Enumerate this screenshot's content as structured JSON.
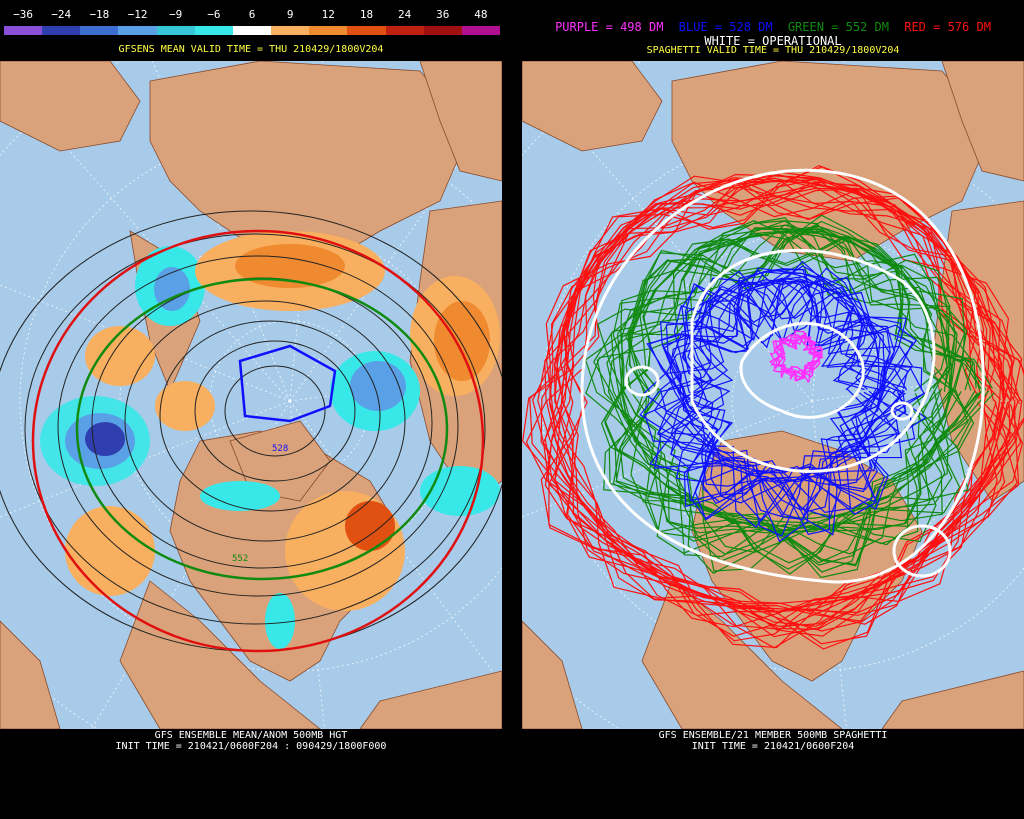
{
  "left": {
    "colorbar": {
      "labels": [
        "−36",
        "−24",
        "−18",
        "−12",
        "−9",
        "−6",
        "6",
        "9",
        "12",
        "18",
        "24",
        "36",
        "48"
      ],
      "colors": [
        "#8a4fd8",
        "#2f3fb0",
        "#3d6fd2",
        "#5aa0e6",
        "#36c6d8",
        "#38e8e8",
        "#ffffff",
        "#f8b060",
        "#f08a30",
        "#e05010",
        "#c02010",
        "#a01010",
        "#b01090"
      ]
    },
    "valid_time": "GFSENS MEAN VALID TIME = THU 210429/1800V204",
    "footer_line1": "GFS ENSEMBLE MEAN/ANOM 500MB HGT",
    "footer_line2": "INIT TIME = 210421/0600F204 : 090429/1800F000",
    "contour_labels": [
      "528",
      "552"
    ]
  },
  "right": {
    "legend": {
      "purple": "PURPLE = 498 DM",
      "blue": "BLUE = 528 DM",
      "green": "GREEN = 552 DM",
      "red": "RED = 576 DM"
    },
    "white_label": "WHITE = OPERATIONAL",
    "valid_time": "SPAGHETTI VALID TIME = THU 210429/1800V204",
    "footer_line1": "GFS ENSEMBLE/21 MEMBER 500MB SPAGHETTI",
    "footer_line2": "INIT TIME = 210421/0600F204"
  },
  "colors": {
    "ocean": "#a7cbe9",
    "land": "#d9a27a",
    "purple": "#ff30ff",
    "blue": "#1010ff",
    "green": "#108a10",
    "red": "#ff1010"
  }
}
